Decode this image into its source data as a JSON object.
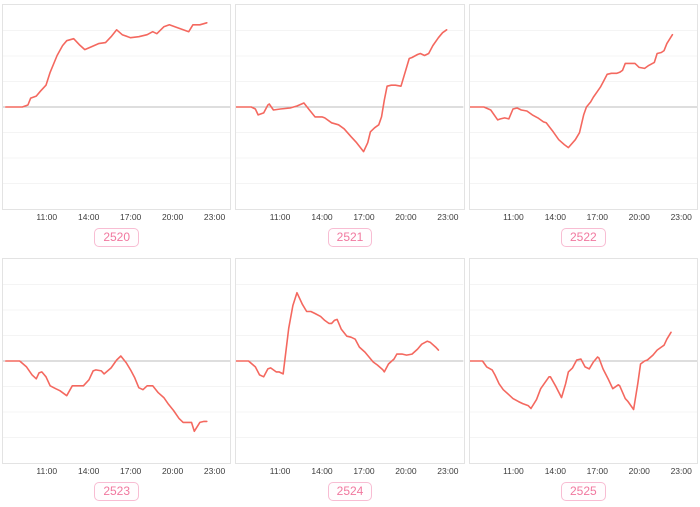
{
  "style": {
    "line_color": "#f4685f",
    "baseline_color": "#bcbcbc",
    "grid_color": "#f4f4f4",
    "border_color": "#e3e3e3",
    "tick_label_color": "#3d3d3d",
    "badge_text_color": "#f1789f",
    "badge_border_color": "#f8bdd3",
    "background": "#ffffff"
  },
  "axis": {
    "x_domain": [
      7.8,
      24.2
    ],
    "y_domain": [
      -103,
      103
    ],
    "y_units": "relative (y axis unlabeled in image)",
    "gridlines": [
      -77.25,
      -51.5,
      -25.75,
      25.75,
      51.5,
      77.25
    ],
    "baseline": 0,
    "x_ticks": [
      {
        "hour": 11,
        "label": "11:00"
      },
      {
        "hour": 14,
        "label": "14:00"
      },
      {
        "hour": 17,
        "label": "17:00"
      },
      {
        "hour": 20,
        "label": "20:00"
      },
      {
        "hour": 23,
        "label": "23:00"
      }
    ]
  },
  "chart_data": [
    {
      "type": "line",
      "label": "2520",
      "clipped_title_fragment": "",
      "x_tick_labels": [
        "11:00",
        "14:00",
        "17:00",
        "20:00",
        "23:00"
      ],
      "points": [
        [
          8.0,
          0
        ],
        [
          9.2,
          0
        ],
        [
          9.6,
          2
        ],
        [
          9.8,
          9
        ],
        [
          10.2,
          11
        ],
        [
          10.5,
          16
        ],
        [
          10.9,
          22
        ],
        [
          11.2,
          35
        ],
        [
          11.7,
          52
        ],
        [
          12.1,
          62
        ],
        [
          12.4,
          67
        ],
        [
          12.9,
          69
        ],
        [
          13.3,
          63
        ],
        [
          13.7,
          58
        ],
        [
          14.2,
          61
        ],
        [
          14.7,
          64
        ],
        [
          15.2,
          65
        ],
        [
          15.6,
          71
        ],
        [
          16.0,
          78
        ],
        [
          16.4,
          73
        ],
        [
          17.0,
          70
        ],
        [
          17.6,
          71
        ],
        [
          18.2,
          73
        ],
        [
          18.6,
          76
        ],
        [
          18.9,
          74
        ],
        [
          19.4,
          81
        ],
        [
          19.8,
          83
        ],
        [
          20.2,
          81
        ],
        [
          20.8,
          78
        ],
        [
          21.2,
          76
        ],
        [
          21.5,
          83
        ],
        [
          22.0,
          83
        ],
        [
          22.5,
          85
        ]
      ]
    },
    {
      "type": "line",
      "label": "2521",
      "clipped_title_fragment": ". .",
      "x_tick_labels": [
        "11:00",
        "14:00",
        "17:00",
        "20:00",
        "23:00"
      ],
      "points": [
        [
          7.8,
          0
        ],
        [
          8.9,
          0
        ],
        [
          9.2,
          -2
        ],
        [
          9.4,
          -8
        ],
        [
          9.8,
          -6
        ],
        [
          10.1,
          2
        ],
        [
          10.2,
          3
        ],
        [
          10.5,
          -3
        ],
        [
          11.0,
          -2
        ],
        [
          11.7,
          -1
        ],
        [
          12.2,
          1
        ],
        [
          12.7,
          4
        ],
        [
          13.1,
          -3
        ],
        [
          13.5,
          -10
        ],
        [
          14.0,
          -10
        ],
        [
          14.2,
          -11
        ],
        [
          14.7,
          -16
        ],
        [
          15.2,
          -18
        ],
        [
          15.6,
          -22
        ],
        [
          16.1,
          -30
        ],
        [
          16.5,
          -36
        ],
        [
          17.0,
          -45
        ],
        [
          17.3,
          -36
        ],
        [
          17.5,
          -25
        ],
        [
          17.8,
          -21
        ],
        [
          18.1,
          -18
        ],
        [
          18.3,
          -10
        ],
        [
          18.5,
          7
        ],
        [
          18.7,
          21
        ],
        [
          19.0,
          22
        ],
        [
          19.3,
          22
        ],
        [
          19.7,
          21
        ],
        [
          20.3,
          49
        ],
        [
          20.5,
          50
        ],
        [
          20.9,
          53
        ],
        [
          21.1,
          54
        ],
        [
          21.4,
          52
        ],
        [
          21.7,
          54
        ],
        [
          22.0,
          62
        ],
        [
          22.4,
          70
        ],
        [
          22.7,
          75
        ],
        [
          23.0,
          78
        ]
      ]
    },
    {
      "type": "line",
      "label": "2522",
      "clipped_title_fragment": ". .",
      "x_tick_labels": [
        "11:00",
        "14:00",
        "17:00",
        "20:00",
        "23:00"
      ],
      "points": [
        [
          7.8,
          0
        ],
        [
          8.8,
          0
        ],
        [
          9.3,
          -3
        ],
        [
          9.8,
          -13
        ],
        [
          10.0,
          -12
        ],
        [
          10.3,
          -11
        ],
        [
          10.6,
          -12
        ],
        [
          10.9,
          -2
        ],
        [
          11.2,
          -1
        ],
        [
          11.5,
          -3
        ],
        [
          11.9,
          -4
        ],
        [
          12.3,
          -8
        ],
        [
          12.7,
          -11
        ],
        [
          13.1,
          -15
        ],
        [
          13.3,
          -16
        ],
        [
          13.8,
          -25
        ],
        [
          14.2,
          -33
        ],
        [
          14.6,
          -38
        ],
        [
          14.9,
          -41
        ],
        [
          15.4,
          -33
        ],
        [
          15.7,
          -26
        ],
        [
          16.0,
          -8
        ],
        [
          16.2,
          0
        ],
        [
          16.5,
          5
        ],
        [
          16.7,
          10
        ],
        [
          17.0,
          16
        ],
        [
          17.2,
          20
        ],
        [
          17.4,
          25
        ],
        [
          17.7,
          33
        ],
        [
          18.0,
          34
        ],
        [
          18.4,
          34
        ],
        [
          18.6,
          35
        ],
        [
          18.8,
          37
        ],
        [
          19.0,
          44
        ],
        [
          19.3,
          44
        ],
        [
          19.7,
          44
        ],
        [
          20.0,
          40
        ],
        [
          20.4,
          39
        ],
        [
          20.7,
          42
        ],
        [
          21.1,
          45
        ],
        [
          21.3,
          54
        ],
        [
          21.6,
          55
        ],
        [
          21.8,
          57
        ],
        [
          22.0,
          64
        ],
        [
          22.4,
          73
        ]
      ]
    },
    {
      "type": "line",
      "label": "2523",
      "clipped_title_fragment": "",
      "x_tick_labels": [
        "11:00",
        "14:00",
        "17:00",
        "20:00",
        "23:00"
      ],
      "points": [
        [
          8.0,
          0
        ],
        [
          9.0,
          0
        ],
        [
          9.5,
          -6
        ],
        [
          9.9,
          -14
        ],
        [
          10.2,
          -18
        ],
        [
          10.4,
          -12
        ],
        [
          10.6,
          -11
        ],
        [
          10.9,
          -16
        ],
        [
          11.2,
          -25
        ],
        [
          11.6,
          -28
        ],
        [
          11.9,
          -30
        ],
        [
          12.4,
          -35
        ],
        [
          12.8,
          -25
        ],
        [
          13.1,
          -25
        ],
        [
          13.6,
          -25
        ],
        [
          14.0,
          -19
        ],
        [
          14.3,
          -10
        ],
        [
          14.5,
          -9
        ],
        [
          14.9,
          -10
        ],
        [
          15.1,
          -13
        ],
        [
          15.6,
          -7
        ],
        [
          16.0,
          1
        ],
        [
          16.3,
          5
        ],
        [
          16.7,
          -2
        ],
        [
          17.0,
          -9
        ],
        [
          17.3,
          -17
        ],
        [
          17.6,
          -27
        ],
        [
          17.9,
          -29
        ],
        [
          18.2,
          -25
        ],
        [
          18.6,
          -25
        ],
        [
          19.0,
          -32
        ],
        [
          19.4,
          -37
        ],
        [
          19.7,
          -43
        ],
        [
          20.1,
          -50
        ],
        [
          20.5,
          -58
        ],
        [
          20.8,
          -62
        ],
        [
          21.2,
          -62
        ],
        [
          21.4,
          -62
        ],
        [
          21.6,
          -71
        ],
        [
          22.0,
          -62
        ],
        [
          22.3,
          -61
        ],
        [
          22.5,
          -61
        ]
      ]
    },
    {
      "type": "line",
      "label": "2524",
      "clipped_title_fragment": "",
      "x_tick_labels": [
        "11:00",
        "14:00",
        "17:00",
        "20:00",
        "23:00"
      ],
      "points": [
        [
          7.8,
          0
        ],
        [
          8.7,
          0
        ],
        [
          9.2,
          -6
        ],
        [
          9.5,
          -14
        ],
        [
          9.8,
          -16
        ],
        [
          10.1,
          -8
        ],
        [
          10.3,
          -7
        ],
        [
          10.7,
          -11
        ],
        [
          10.9,
          -11
        ],
        [
          11.2,
          -13
        ],
        [
          11.4,
          10
        ],
        [
          11.6,
          33
        ],
        [
          11.9,
          56
        ],
        [
          12.2,
          69
        ],
        [
          12.6,
          57
        ],
        [
          12.9,
          50
        ],
        [
          13.2,
          50
        ],
        [
          13.5,
          48
        ],
        [
          13.9,
          45
        ],
        [
          14.2,
          41
        ],
        [
          14.5,
          38
        ],
        [
          14.7,
          38
        ],
        [
          14.9,
          41
        ],
        [
          15.1,
          42
        ],
        [
          15.4,
          32
        ],
        [
          15.8,
          25
        ],
        [
          16.1,
          24
        ],
        [
          16.4,
          22
        ],
        [
          16.7,
          14
        ],
        [
          17.1,
          9
        ],
        [
          17.4,
          4
        ],
        [
          17.7,
          -1
        ],
        [
          18.0,
          -4
        ],
        [
          18.4,
          -9
        ],
        [
          18.5,
          -11
        ],
        [
          18.8,
          -3
        ],
        [
          19.2,
          2
        ],
        [
          19.4,
          7
        ],
        [
          19.8,
          7
        ],
        [
          20.1,
          6
        ],
        [
          20.5,
          7
        ],
        [
          20.9,
          12
        ],
        [
          21.2,
          17
        ],
        [
          21.6,
          20
        ],
        [
          21.8,
          19
        ],
        [
          22.2,
          14
        ],
        [
          22.4,
          11
        ]
      ]
    },
    {
      "type": "line",
      "label": "2525",
      "clipped_title_fragment": "",
      "x_tick_labels": [
        "11:00",
        "14:00",
        "17:00",
        "20:00",
        "23:00"
      ],
      "points": [
        [
          7.8,
          0
        ],
        [
          8.7,
          0
        ],
        [
          9.0,
          -6
        ],
        [
          9.4,
          -9
        ],
        [
          9.6,
          -14
        ],
        [
          9.9,
          -23
        ],
        [
          10.2,
          -29
        ],
        [
          10.6,
          -34
        ],
        [
          10.9,
          -38
        ],
        [
          11.3,
          -41
        ],
        [
          11.6,
          -43
        ],
        [
          12.0,
          -45
        ],
        [
          12.2,
          -48
        ],
        [
          12.6,
          -39
        ],
        [
          12.9,
          -28
        ],
        [
          13.5,
          -16
        ],
        [
          13.6,
          -16
        ],
        [
          14.0,
          -26
        ],
        [
          14.4,
          -37
        ],
        [
          14.7,
          -23
        ],
        [
          14.9,
          -11
        ],
        [
          15.2,
          -7
        ],
        [
          15.5,
          1
        ],
        [
          15.8,
          2
        ],
        [
          16.1,
          -6
        ],
        [
          16.4,
          -8
        ],
        [
          16.7,
          -1
        ],
        [
          17.0,
          4
        ],
        [
          17.1,
          3
        ],
        [
          17.4,
          -8
        ],
        [
          17.8,
          -19
        ],
        [
          18.1,
          -28
        ],
        [
          18.5,
          -24
        ],
        [
          18.6,
          -25
        ],
        [
          19.0,
          -38
        ],
        [
          19.2,
          -41
        ],
        [
          19.6,
          -49
        ],
        [
          19.9,
          -23
        ],
        [
          20.1,
          -3
        ],
        [
          20.4,
          0
        ],
        [
          20.6,
          1
        ],
        [
          21.0,
          6
        ],
        [
          21.3,
          11
        ],
        [
          21.6,
          14
        ],
        [
          21.8,
          16
        ],
        [
          22.0,
          22
        ],
        [
          22.3,
          29
        ]
      ]
    }
  ]
}
